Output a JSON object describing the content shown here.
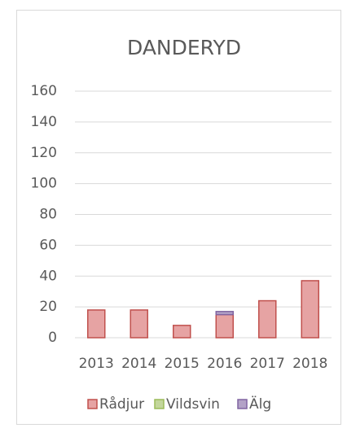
{
  "chart_data": {
    "type": "stacked_bar",
    "title": "DANDERYD",
    "categories": [
      "2013",
      "2014",
      "2015",
      "2016",
      "2017",
      "2018"
    ],
    "series": [
      {
        "name": "Rådjur",
        "color": "#e6a3a3",
        "edge": "#c0504d",
        "values": [
          18,
          18,
          8,
          15,
          24,
          37
        ]
      },
      {
        "name": "Vildsvin",
        "color": "#c3d69b",
        "edge": "#9bbb59",
        "values": [
          0,
          0,
          0,
          0,
          0,
          0
        ]
      },
      {
        "name": "Älg",
        "color": "#b3a2c7",
        "edge": "#8064a2",
        "values": [
          0,
          0,
          0,
          2,
          0,
          0
        ]
      }
    ],
    "ylim": [
      0,
      160
    ],
    "yticks": [
      0,
      20,
      40,
      60,
      80,
      100,
      120,
      140,
      160
    ],
    "grid": true,
    "legend": "bottom"
  }
}
